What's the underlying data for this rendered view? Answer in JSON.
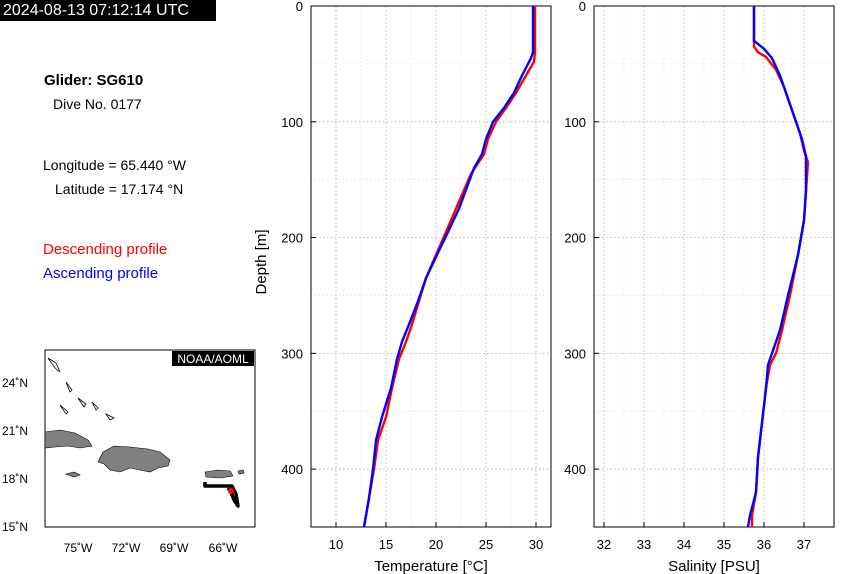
{
  "header": {
    "timestamp": "2024-08-13 07:12:14 UTC"
  },
  "glider": {
    "title": "Glider: SG610",
    "dive": "Dive No. 0177",
    "longitude": "Longitude = 65.440 °W",
    "latitude": "Latitude = 17.174 °N"
  },
  "legend": {
    "descending": "Descending profile",
    "ascending": "Ascending profile",
    "descending_color": "#ff0000",
    "ascending_color": "#0000ff"
  },
  "map": {
    "badge": "NOAA/AOML",
    "lat_labels": [
      "24˚N",
      "21˚N",
      "18˚N",
      "15˚N"
    ],
    "lon_labels": [
      "75˚W",
      "72˚W",
      "69˚W",
      "66˚W"
    ],
    "land_color": "#808080",
    "track_color": "#000000",
    "marker_color": "#ff0000"
  },
  "chart_data": [
    {
      "type": "line",
      "xlabel": "Temperature [°C]",
      "ylabel": "Depth [m]",
      "xlim": [
        7.5,
        31.5
      ],
      "ylim": [
        450,
        0
      ],
      "x_ticks": [
        "10",
        "15",
        "20",
        "25",
        "30"
      ],
      "y_ticks": [
        "0",
        "100",
        "200",
        "300",
        "400"
      ],
      "grid": true,
      "series": [
        {
          "name": "Descending profile",
          "color": "#ff0000",
          "points": [
            [
              29.9,
              0
            ],
            [
              29.9,
              40
            ],
            [
              29.8,
              48
            ],
            [
              29.0,
              60
            ],
            [
              28.0,
              75
            ],
            [
              27.0,
              88
            ],
            [
              26.0,
              100
            ],
            [
              25.2,
              115
            ],
            [
              24.8,
              128
            ],
            [
              23.5,
              145
            ],
            [
              22.0,
              175
            ],
            [
              21.0,
              195
            ],
            [
              20.0,
              215
            ],
            [
              19.0,
              235
            ],
            [
              18.3,
              255
            ],
            [
              17.6,
              275
            ],
            [
              17.0,
              290
            ],
            [
              16.3,
              305
            ],
            [
              15.6,
              330
            ],
            [
              15.0,
              355
            ],
            [
              14.2,
              375
            ],
            [
              13.8,
              400
            ],
            [
              13.3,
              425
            ],
            [
              13.0,
              440
            ],
            [
              12.8,
              450
            ]
          ]
        },
        {
          "name": "Ascending profile",
          "color": "#0000ff",
          "points": [
            [
              29.7,
              0
            ],
            [
              29.7,
              40
            ],
            [
              29.5,
              45
            ],
            [
              28.6,
              60
            ],
            [
              27.8,
              75
            ],
            [
              26.8,
              88
            ],
            [
              25.7,
              100
            ],
            [
              25.0,
              115
            ],
            [
              24.6,
              128
            ],
            [
              23.8,
              140
            ],
            [
              22.3,
              175
            ],
            [
              21.2,
              195
            ],
            [
              20.1,
              215
            ],
            [
              19.0,
              235
            ],
            [
              18.2,
              255
            ],
            [
              17.3,
              275
            ],
            [
              16.6,
              290
            ],
            [
              16.1,
              305
            ],
            [
              15.5,
              330
            ],
            [
              14.6,
              355
            ],
            [
              14.0,
              375
            ],
            [
              13.7,
              400
            ],
            [
              13.3,
              425
            ],
            [
              13.0,
              440
            ],
            [
              12.8,
              450
            ]
          ]
        }
      ]
    },
    {
      "type": "line",
      "xlabel": "Salinity [PSU]",
      "ylabel": "",
      "xlim": [
        31.75,
        37.75
      ],
      "ylim": [
        450,
        0
      ],
      "x_ticks": [
        "32",
        "33",
        "34",
        "35",
        "36",
        "37"
      ],
      "y_ticks": [
        "0",
        "100",
        "200",
        "300",
        "400"
      ],
      "grid": true,
      "series": [
        {
          "name": "Descending profile",
          "color": "#ff0000",
          "points": [
            [
              35.75,
              0
            ],
            [
              35.75,
              35
            ],
            [
              35.85,
              40
            ],
            [
              36.05,
              44
            ],
            [
              36.3,
              55
            ],
            [
              36.5,
              70
            ],
            [
              36.7,
              90
            ],
            [
              36.9,
              110
            ],
            [
              37.0,
              125
            ],
            [
              37.1,
              135
            ],
            [
              37.05,
              160
            ],
            [
              37.0,
              185
            ],
            [
              36.85,
              215
            ],
            [
              36.65,
              250
            ],
            [
              36.45,
              280
            ],
            [
              36.3,
              300
            ],
            [
              36.15,
              310
            ],
            [
              36.05,
              330
            ],
            [
              35.95,
              360
            ],
            [
              35.85,
              390
            ],
            [
              35.8,
              420
            ],
            [
              35.7,
              440
            ],
            [
              35.7,
              450
            ]
          ]
        },
        {
          "name": "Ascending profile",
          "color": "#0000ff",
          "points": [
            [
              35.75,
              0
            ],
            [
              35.75,
              30
            ],
            [
              36.0,
              37
            ],
            [
              36.2,
              45
            ],
            [
              36.4,
              60
            ],
            [
              36.55,
              75
            ],
            [
              36.75,
              95
            ],
            [
              36.95,
              115
            ],
            [
              37.05,
              130
            ],
            [
              37.05,
              160
            ],
            [
              37.0,
              185
            ],
            [
              36.85,
              215
            ],
            [
              36.6,
              250
            ],
            [
              36.4,
              280
            ],
            [
              36.2,
              300
            ],
            [
              36.1,
              310
            ],
            [
              36.05,
              330
            ],
            [
              35.95,
              360
            ],
            [
              35.85,
              390
            ],
            [
              35.8,
              420
            ],
            [
              35.65,
              440
            ],
            [
              35.6,
              450
            ]
          ]
        }
      ]
    }
  ]
}
